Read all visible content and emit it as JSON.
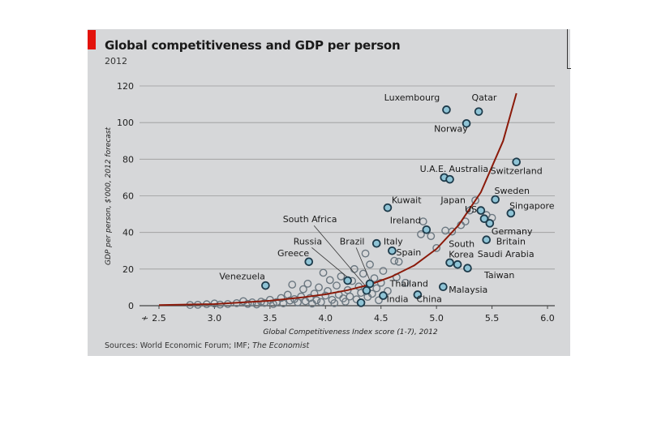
{
  "header": {
    "title": "Global competitiveness and GDP per person",
    "subtitle": "2012"
  },
  "source": {
    "prefix": "Sources: World Economic Forum; IMF;",
    "italic": "The Economist"
  },
  "colors": {
    "panel": "#d6d7d9",
    "accent": "#e3120b",
    "curve": "#8b1a0a",
    "point_fill": "#8fc4d6",
    "point_stroke": "#1d3a4a",
    "grid": "#9a9a9a"
  },
  "chart_data": {
    "type": "scatter",
    "title": "Global competitiveness and GDP per person",
    "subtitle": "2012",
    "xlabel": "Global Competitiveness Index score (1-7), 2012",
    "ylabel": "GDP per person, $'000, 2012 forecast",
    "xlim": [
      2.5,
      6.0
    ],
    "ylim": [
      0,
      120
    ],
    "xticks": [
      2.5,
      3.0,
      3.5,
      4.0,
      4.5,
      5.0,
      5.5,
      6.0
    ],
    "xtick_labels": [
      "2.5",
      "3.0",
      "3.5",
      "4.0",
      "4.5",
      "5.0",
      "5.5",
      "6.0"
    ],
    "yticks": [
      0,
      20,
      40,
      60,
      80,
      100,
      120
    ],
    "grid": true,
    "axis_break_symbol": "≁",
    "fit_curve": {
      "x": [
        2.5,
        3.0,
        3.5,
        3.8,
        4.0,
        4.2,
        4.4,
        4.6,
        4.8,
        5.0,
        5.2,
        5.4,
        5.6,
        5.72
      ],
      "y": [
        0.3,
        0.9,
        2.7,
        4.6,
        6.2,
        8.5,
        11.5,
        16,
        22,
        31,
        44,
        62,
        90,
        116
      ]
    },
    "labeled_points": [
      {
        "name": "Luxembourg",
        "x": 5.09,
        "y": 107,
        "lx": 5.03,
        "ly": 112,
        "anchor": "end"
      },
      {
        "name": "Qatar",
        "x": 5.38,
        "y": 106,
        "lx": 5.43,
        "ly": 112,
        "anchor": "middle"
      },
      {
        "name": "Norway",
        "x": 5.27,
        "y": 99.5,
        "lx": 5.13,
        "ly": 95,
        "anchor": "middle"
      },
      {
        "name": "U.A.E.",
        "x": 5.07,
        "y": 70,
        "lx": 4.97,
        "ly": 73,
        "anchor": "middle"
      },
      {
        "name": "Australia",
        "x": 5.12,
        "y": 69,
        "lx": 5.29,
        "ly": 73,
        "anchor": "middle"
      },
      {
        "name": "Switzerland",
        "x": 5.72,
        "y": 78.5,
        "lx": 5.72,
        "ly": 72,
        "anchor": "middle"
      },
      {
        "name": "Kuwait",
        "x": 4.56,
        "y": 53.5,
        "lx": 4.73,
        "ly": 56,
        "anchor": "middle"
      },
      {
        "name": "Japan",
        "x": 5.4,
        "y": 52,
        "lx": 5.15,
        "ly": 56,
        "anchor": "middle"
      },
      {
        "name": "Sweden",
        "x": 5.53,
        "y": 58,
        "lx": 5.68,
        "ly": 61,
        "anchor": "middle"
      },
      {
        "name": "US",
        "x": 5.43,
        "y": 47.5,
        "lx": 5.31,
        "ly": 51,
        "anchor": "middle"
      },
      {
        "name": "Singapore",
        "x": 5.67,
        "y": 50.5,
        "lx": 5.86,
        "ly": 53,
        "anchor": "middle"
      },
      {
        "name": "Ireland",
        "x": 4.91,
        "y": 41.5,
        "lx": 4.72,
        "ly": 45,
        "anchor": "middle"
      },
      {
        "name": "Germany",
        "x": 5.48,
        "y": 45,
        "lx": 5.68,
        "ly": 39,
        "anchor": "middle"
      },
      {
        "name": "Britain",
        "x": 5.45,
        "y": 36,
        "lx": 5.67,
        "ly": 33.5,
        "anchor": "middle"
      },
      {
        "name": "South Africa",
        "x": 4.37,
        "y": 8.3,
        "lx": 3.86,
        "ly": 45.5,
        "anchor": "middle"
      },
      {
        "name": "Russia",
        "x": 4.2,
        "y": 13.7,
        "lx": 3.84,
        "ly": 33.5,
        "anchor": "middle"
      },
      {
        "name": "Brazil",
        "x": 4.4,
        "y": 12,
        "lx": 4.24,
        "ly": 33.5,
        "anchor": "middle"
      },
      {
        "name": "Italy",
        "x": 4.46,
        "y": 34,
        "lx": 4.61,
        "ly": 33.5,
        "anchor": "middle"
      },
      {
        "name": "Spain",
        "x": 4.6,
        "y": 30,
        "lx": 4.75,
        "ly": 27.5,
        "anchor": "middle"
      },
      {
        "name": "South Korea",
        "x": 5.12,
        "y": 23.5,
        "lx": 5.11,
        "ly": 32,
        "anchor": "start",
        "lines": [
          "South",
          "Korea"
        ]
      },
      {
        "name": "Saudi Arabia",
        "x": 5.19,
        "y": 22.5,
        "lx": 5.37,
        "ly": 26.5,
        "anchor": "start"
      },
      {
        "name": "Greece",
        "x": 3.85,
        "y": 24,
        "lx": 3.71,
        "ly": 27,
        "anchor": "middle"
      },
      {
        "name": "Taiwan",
        "x": 5.28,
        "y": 20.5,
        "lx": 5.43,
        "ly": 15,
        "anchor": "start"
      },
      {
        "name": "Venezuela",
        "x": 3.46,
        "y": 11,
        "lx": 3.25,
        "ly": 14.5,
        "anchor": "middle"
      },
      {
        "name": "Thailand",
        "x": 4.52,
        "y": 5.5,
        "lx": 4.58,
        "ly": 10.5,
        "anchor": "start"
      },
      {
        "name": "Malaysia",
        "x": 5.06,
        "y": 10.3,
        "lx": 5.11,
        "ly": 7,
        "anchor": "start"
      },
      {
        "name": "India",
        "x": 4.32,
        "y": 1.6,
        "lx": 4.55,
        "ly": 2,
        "anchor": "start"
      },
      {
        "name": "China",
        "x": 4.83,
        "y": 6,
        "lx": 4.82,
        "ly": 2,
        "anchor": "start"
      }
    ],
    "points": [
      [
        2.78,
        0.4
      ],
      [
        2.85,
        0.5
      ],
      [
        2.93,
        0.8
      ],
      [
        3.0,
        1.2
      ],
      [
        3.05,
        0.6
      ],
      [
        3.12,
        0.9
      ],
      [
        3.2,
        1.4
      ],
      [
        3.26,
        2.5
      ],
      [
        3.3,
        1.0
      ],
      [
        3.34,
        1.8
      ],
      [
        3.38,
        0.7
      ],
      [
        3.42,
        2.2
      ],
      [
        3.45,
        1.5
      ],
      [
        3.5,
        3.2
      ],
      [
        3.53,
        0.9
      ],
      [
        3.56,
        2.0
      ],
      [
        3.6,
        4.2
      ],
      [
        3.62,
        1.3
      ],
      [
        3.66,
        6.0
      ],
      [
        3.68,
        2.8
      ],
      [
        3.7,
        11.5
      ],
      [
        3.72,
        3.6
      ],
      [
        3.75,
        1.8
      ],
      [
        3.78,
        5.0
      ],
      [
        3.8,
        9.0
      ],
      [
        3.82,
        2.4
      ],
      [
        3.84,
        12.0
      ],
      [
        3.86,
        4.2
      ],
      [
        3.88,
        1.2
      ],
      [
        3.9,
        6.6
      ],
      [
        3.92,
        3.0
      ],
      [
        3.94,
        10.0
      ],
      [
        3.96,
        2.0
      ],
      [
        3.98,
        18.0
      ],
      [
        4.0,
        5.5
      ],
      [
        4.02,
        8.0
      ],
      [
        4.04,
        14.0
      ],
      [
        4.06,
        3.2
      ],
      [
        4.08,
        1.4
      ],
      [
        4.1,
        11.0
      ],
      [
        4.12,
        6.0
      ],
      [
        4.14,
        16.0
      ],
      [
        4.16,
        4.0
      ],
      [
        4.18,
        2.2
      ],
      [
        4.2,
        8.5
      ],
      [
        4.22,
        5.0
      ],
      [
        4.24,
        13.5
      ],
      [
        4.26,
        20.0
      ],
      [
        4.28,
        3.5
      ],
      [
        4.3,
        10.5
      ],
      [
        4.32,
        7.0
      ],
      [
        4.34,
        17.5
      ],
      [
        4.36,
        28.5
      ],
      [
        4.38,
        4.8
      ],
      [
        4.4,
        22.5
      ],
      [
        4.42,
        6.5
      ],
      [
        4.44,
        15.0
      ],
      [
        4.46,
        9.5
      ],
      [
        4.48,
        3.0
      ],
      [
        4.5,
        12.5
      ],
      [
        4.52,
        19.0
      ],
      [
        4.56,
        8.0
      ],
      [
        4.62,
        24.5
      ],
      [
        4.64,
        15.5
      ],
      [
        4.66,
        24.0
      ],
      [
        4.72,
        12.5
      ],
      [
        4.86,
        39.0
      ],
      [
        4.88,
        46.0
      ],
      [
        4.95,
        38.0
      ],
      [
        5.0,
        31.5
      ],
      [
        5.08,
        41.0
      ],
      [
        5.14,
        40.5
      ],
      [
        5.22,
        44.0
      ],
      [
        5.26,
        46.0
      ],
      [
        5.3,
        52.0
      ],
      [
        5.35,
        57.5
      ],
      [
        5.45,
        49.5
      ],
      [
        5.5,
        48.0
      ]
    ]
  }
}
